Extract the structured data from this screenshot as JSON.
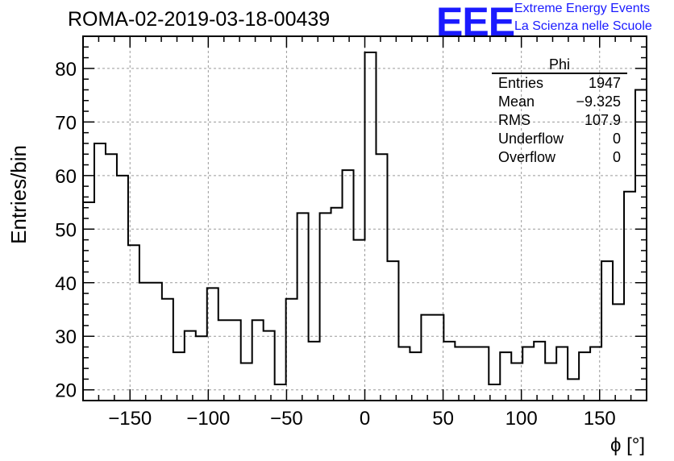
{
  "title": "ROMA-02-2019-03-18-00439",
  "logo": {
    "mark": "EEE",
    "line1": "Extreme Energy Events",
    "line2": "La Scienza nelle Scuole",
    "color": "#1a1aff"
  },
  "stats": {
    "name": "Phi",
    "rows": [
      {
        "label": "Entries",
        "value": "1947"
      },
      {
        "label": "Mean",
        "value": "−9.325"
      },
      {
        "label": "RMS",
        "value": "107.9"
      },
      {
        "label": "Underflow",
        "value": "0"
      },
      {
        "label": "Overflow",
        "value": "0"
      }
    ]
  },
  "chart_data": {
    "type": "histogram",
    "xlabel": "ϕ [°]",
    "ylabel": "Entries/bin",
    "xlim": [
      -180,
      180
    ],
    "ylim": [
      18,
      86
    ],
    "xticks": [
      -150,
      -100,
      -50,
      0,
      50,
      100,
      150
    ],
    "yticks": [
      20,
      30,
      40,
      50,
      60,
      70,
      80
    ],
    "grid": true,
    "bin_width": 7.2,
    "bin_edges_start": -180,
    "values": [
      55,
      66,
      64,
      60,
      47,
      40,
      40,
      37,
      27,
      31,
      30,
      39,
      33,
      33,
      25,
      33,
      31,
      21,
      37,
      53,
      29,
      53,
      54,
      61,
      48,
      83,
      64,
      44,
      28,
      27,
      34,
      34,
      29,
      28,
      28,
      28,
      21,
      27,
      25,
      28,
      29,
      25,
      28,
      22,
      27,
      28,
      44,
      36,
      57,
      76
    ],
    "line_color": "#000000"
  }
}
